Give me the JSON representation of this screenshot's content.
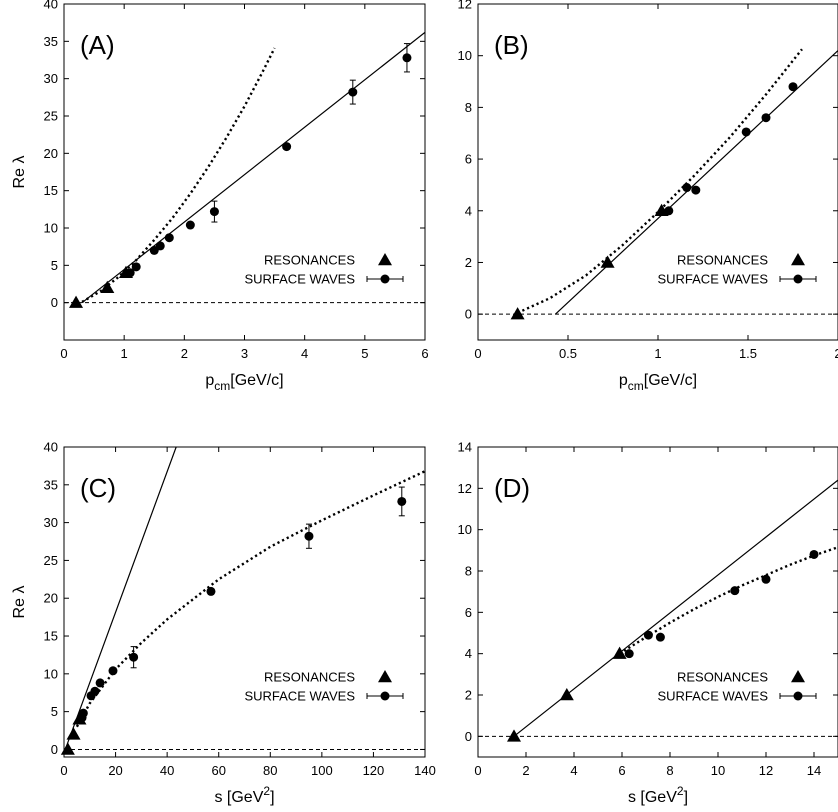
{
  "colors": {
    "foreground": "#000000",
    "background": "#ffffff"
  },
  "chart_data": [
    {
      "panel": "(A)",
      "type": "scatter",
      "xlabel": {
        "main": "p",
        "sub": "cm",
        "rest": "[GeV/c]"
      },
      "ylabel": "Re λ",
      "xlim": [
        0,
        6
      ],
      "ylim": [
        -5,
        40
      ],
      "xticks": [
        0,
        1,
        2,
        3,
        4,
        5,
        6
      ],
      "yticks": [
        0,
        5,
        10,
        15,
        20,
        25,
        30,
        35,
        40
      ],
      "legend": {
        "placement": "lower-right",
        "entries": [
          "RESONANCES",
          "SURFACE WAVES"
        ]
      },
      "series": [
        {
          "name": "RESONANCES",
          "marker": "triangle",
          "x": [
            0.2,
            0.72,
            1.03
          ],
          "y": [
            0,
            2,
            4
          ]
        },
        {
          "name": "SURFACE WAVES",
          "marker": "circle",
          "x": [
            1.1,
            1.2,
            1.5,
            1.6,
            1.75,
            2.1,
            2.5,
            3.7,
            4.8,
            5.7
          ],
          "y": [
            4.0,
            4.8,
            7.0,
            7.6,
            8.7,
            10.4,
            12.2,
            20.9,
            28.2,
            32.8
          ],
          "yerr": [
            0,
            0,
            0,
            0,
            0,
            0,
            1.4,
            0,
            1.6,
            1.9
          ]
        },
        {
          "kind": "line",
          "style": "solid",
          "x": [
            0.3,
            6.0
          ],
          "y": [
            0.0,
            36.2
          ]
        },
        {
          "kind": "line",
          "style": "dotted",
          "x": [
            0.3,
            0.6,
            0.9,
            1.2,
            1.5,
            1.8,
            2.1,
            2.4,
            2.7,
            3.0,
            3.3,
            3.5
          ],
          "y": [
            0.1,
            1.5,
            3.4,
            5.7,
            8.4,
            11.3,
            14.6,
            18.2,
            22.1,
            26.3,
            30.9,
            34.1
          ]
        },
        {
          "kind": "line",
          "style": "dashed",
          "x": [
            0,
            6
          ],
          "y": [
            0,
            0
          ]
        }
      ]
    },
    {
      "panel": "(B)",
      "type": "scatter",
      "xlabel": {
        "main": "p",
        "sub": "cm",
        "rest": "[GeV/c]"
      },
      "ylabel": "",
      "xlim": [
        0,
        2
      ],
      "ylim": [
        -1,
        12
      ],
      "xticks": [
        0,
        0.5,
        1,
        1.5,
        2
      ],
      "xtick_labels": [
        "0",
        "0.5",
        "1",
        "1.5",
        "2"
      ],
      "yticks": [
        0,
        2,
        4,
        6,
        8,
        10,
        12
      ],
      "legend": {
        "placement": "lower-right",
        "entries": [
          "RESONANCES",
          "SURFACE WAVES"
        ]
      },
      "series": [
        {
          "name": "RESONANCES",
          "marker": "triangle",
          "x": [
            0.22,
            0.72,
            1.02
          ],
          "y": [
            0,
            2,
            4
          ]
        },
        {
          "name": "SURFACE WAVES",
          "marker": "circle",
          "x": [
            1.06,
            1.16,
            1.21,
            1.49,
            1.6,
            1.75
          ],
          "y": [
            4.0,
            4.9,
            4.8,
            7.05,
            7.6,
            8.8
          ]
        },
        {
          "kind": "line",
          "style": "solid",
          "x": [
            0.43,
            2.0
          ],
          "y": [
            0.0,
            10.2
          ]
        },
        {
          "kind": "line",
          "style": "dotted",
          "x": [
            0.22,
            0.4,
            0.6,
            0.8,
            1.0,
            1.2,
            1.4,
            1.6,
            1.8
          ],
          "y": [
            0.05,
            0.62,
            1.5,
            2.65,
            3.95,
            5.35,
            6.85,
            8.5,
            10.25
          ]
        },
        {
          "kind": "line",
          "style": "dashed",
          "x": [
            0,
            2
          ],
          "y": [
            0,
            0
          ]
        }
      ]
    },
    {
      "panel": "(C)",
      "type": "scatter",
      "xlabel": {
        "main": "s [GeV",
        "sup": "2",
        "rest": "]"
      },
      "ylabel": "Re λ",
      "xlim": [
        0,
        140
      ],
      "ylim": [
        -1,
        40
      ],
      "xticks": [
        0,
        20,
        40,
        60,
        80,
        100,
        120,
        140
      ],
      "yticks": [
        0,
        5,
        10,
        15,
        20,
        25,
        30,
        35,
        40
      ],
      "legend": {
        "placement": "lower-right",
        "entries": [
          "RESONANCES",
          "SURFACE WAVES"
        ]
      },
      "series": [
        {
          "name": "RESONANCES",
          "marker": "triangle",
          "x": [
            1.5,
            3.7,
            6.0
          ],
          "y": [
            0,
            2,
            4
          ]
        },
        {
          "name": "SURFACE WAVES",
          "marker": "circle",
          "x": [
            7.0,
            7.5,
            10.5,
            12.0,
            14.0,
            19.0,
            27.0,
            57.0,
            95.0,
            131.0
          ],
          "y": [
            4.2,
            4.8,
            7.1,
            7.7,
            8.8,
            10.4,
            12.2,
            20.9,
            28.2,
            32.8
          ],
          "yerr": [
            0,
            0,
            0,
            0,
            0,
            0,
            1.4,
            0,
            1.6,
            1.9
          ]
        },
        {
          "kind": "line",
          "style": "solid",
          "x": [
            0.5,
            43.5
          ],
          "y": [
            0.0,
            40.0
          ]
        },
        {
          "kind": "line",
          "style": "dotted",
          "x": [
            5,
            10,
            20,
            30,
            40,
            60,
            80,
            100,
            120,
            140
          ],
          "y": [
            3.0,
            6.1,
            10.6,
            14.1,
            17.2,
            22.5,
            26.8,
            30.3,
            33.6,
            36.8
          ]
        },
        {
          "kind": "line",
          "style": "dashed",
          "x": [
            0,
            140
          ],
          "y": [
            0,
            0
          ]
        }
      ]
    },
    {
      "panel": "(D)",
      "type": "scatter",
      "xlabel": {
        "main": "s [GeV",
        "sup": "2",
        "rest": "]"
      },
      "ylabel": "",
      "xlim": [
        0,
        15
      ],
      "ylim": [
        -1,
        14
      ],
      "xticks": [
        0,
        2,
        4,
        6,
        8,
        10,
        12,
        14
      ],
      "yticks": [
        0,
        2,
        4,
        6,
        8,
        10,
        12,
        14
      ],
      "legend": {
        "placement": "lower-right",
        "entries": [
          "RESONANCES",
          "SURFACE WAVES"
        ]
      },
      "series": [
        {
          "name": "RESONANCES",
          "marker": "triangle",
          "x": [
            1.5,
            3.7,
            5.9
          ],
          "y": [
            0,
            2,
            4
          ]
        },
        {
          "name": "SURFACE WAVES",
          "marker": "circle",
          "x": [
            6.3,
            7.1,
            7.6,
            10.7,
            12.0,
            14.0
          ],
          "y": [
            4.0,
            4.9,
            4.8,
            7.05,
            7.6,
            8.8
          ]
        },
        {
          "kind": "line",
          "style": "solid",
          "x": [
            1.5,
            15.0
          ],
          "y": [
            0.0,
            12.4
          ]
        },
        {
          "kind": "line",
          "style": "dotted",
          "x": [
            5.9,
            7,
            8,
            9,
            10,
            11,
            12,
            13,
            14,
            15
          ],
          "y": [
            4.0,
            4.8,
            5.5,
            6.15,
            6.75,
            7.3,
            7.8,
            8.3,
            8.75,
            9.15
          ]
        },
        {
          "kind": "line",
          "style": "dashed",
          "x": [
            0,
            15
          ],
          "y": [
            0,
            0
          ]
        }
      ]
    }
  ]
}
